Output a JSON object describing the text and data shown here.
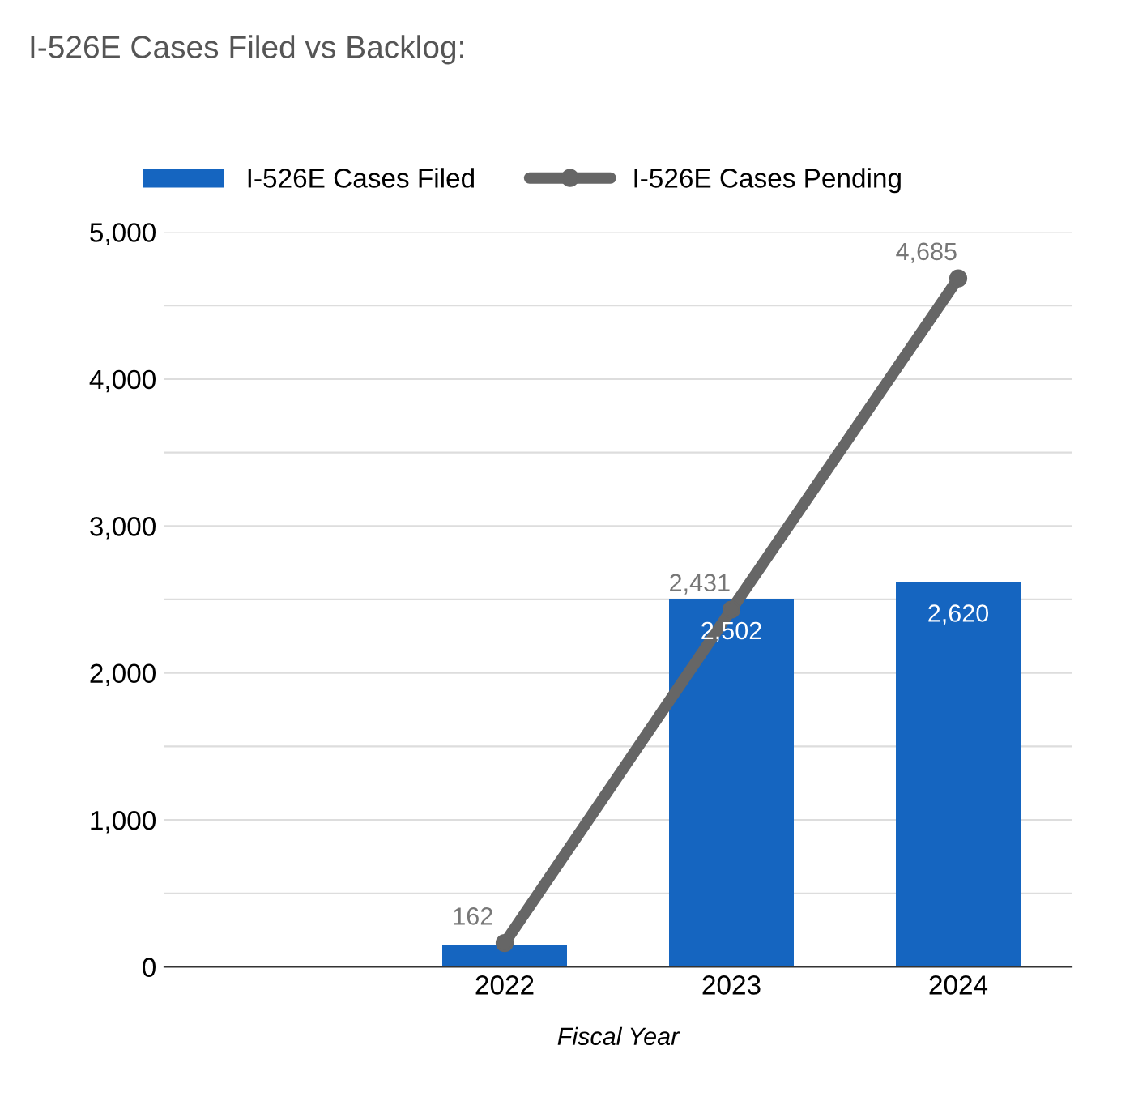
{
  "chart_data": {
    "type": "bar",
    "title": "I-526E Cases Filed vs Backlog:",
    "xlabel": "Fiscal Year",
    "categories": [
      null,
      "2022",
      "2023",
      "2024"
    ],
    "series": [
      {
        "name": "I-526E Cases Filed",
        "color": "#1565c0",
        "values": [
          null,
          150,
          2502,
          2620
        ],
        "value_labels": [
          null,
          null,
          "2,502",
          "2,620"
        ]
      },
      {
        "name": "I-526E Cases Pending",
        "type": "line",
        "color": "#666666",
        "marker": "circle",
        "values": [
          null,
          162,
          2431,
          4685
        ],
        "value_labels": [
          null,
          "162",
          "2,431",
          "4,685"
        ]
      }
    ],
    "ylim": [
      0,
      5000
    ],
    "yticks": [
      0,
      {
        "value": 500,
        "label": null
      },
      {
        "value": 1000,
        "label": "1,000"
      },
      {
        "value": 1500,
        "label": null
      },
      {
        "value": 2000,
        "label": "2,000"
      },
      {
        "value": 2500,
        "label": null
      },
      {
        "value": 3000,
        "label": "3,000"
      },
      {
        "value": 3500,
        "label": null
      },
      {
        "value": 4000,
        "label": "4,000"
      },
      {
        "value": 4500,
        "label": null
      },
      {
        "value": 5000,
        "label": "5,000"
      }
    ],
    "grid": "y",
    "legend": "top"
  }
}
